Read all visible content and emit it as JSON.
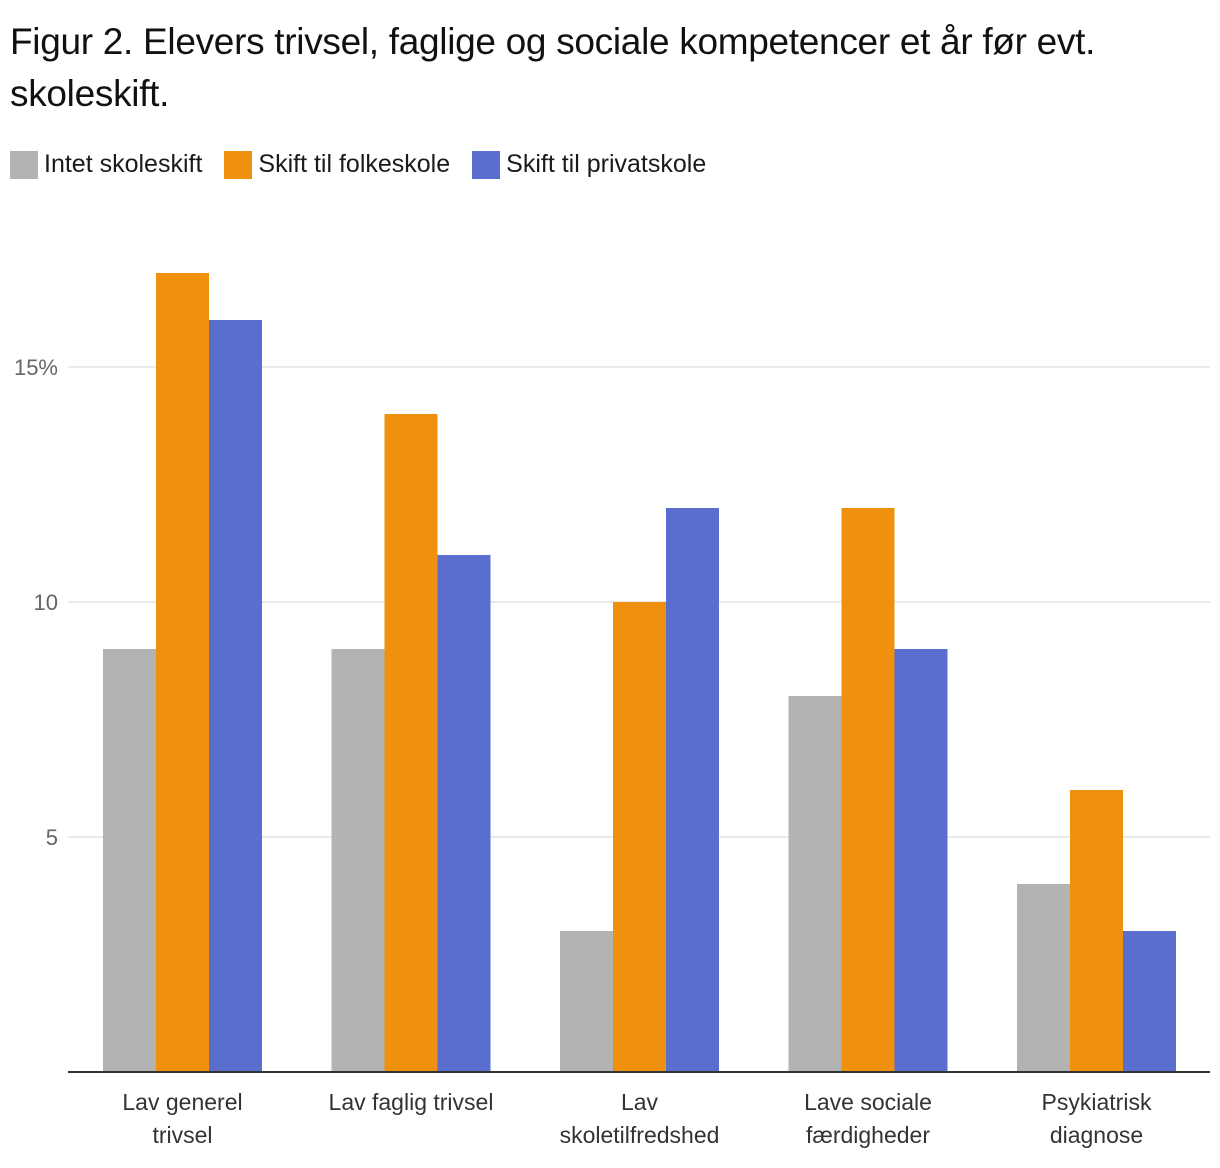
{
  "chart_data": {
    "type": "bar",
    "title": "Figur 2. Elevers trivsel, faglige og sociale kompetencer et år før evt. skoleskift.",
    "categories": [
      [
        "Lav generel",
        "trivsel"
      ],
      [
        "Lav faglig trivsel"
      ],
      [
        "Lav",
        "skoletilfredshed"
      ],
      [
        "Lave sociale",
        "færdigheder"
      ],
      [
        "Psykiatrisk",
        "diagnose"
      ]
    ],
    "series": [
      {
        "name": "Intet skoleskift",
        "color": "#b3b3b3",
        "values": [
          9,
          9,
          3,
          8,
          4
        ]
      },
      {
        "name": "Skift til folkeskole",
        "color": "#f0900f",
        "values": [
          17,
          14,
          10,
          12,
          6
        ]
      },
      {
        "name": "Skift til privatskole",
        "color": "#5a6fcd",
        "values": [
          16,
          11,
          12,
          9,
          3
        ]
      }
    ],
    "yticks": [
      {
        "value": 5,
        "label": "5"
      },
      {
        "value": 10,
        "label": "10"
      },
      {
        "value": 15,
        "label": "15%"
      }
    ],
    "ylim": [
      0,
      18
    ],
    "xlabel": "",
    "ylabel": "",
    "grid": true,
    "legend_position": "top-left"
  }
}
